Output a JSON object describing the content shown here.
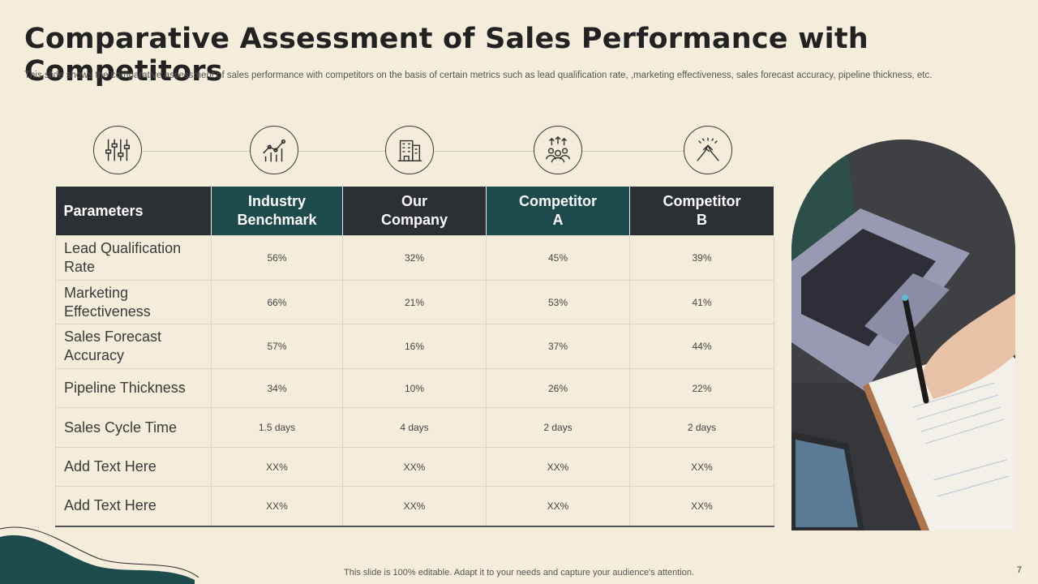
{
  "slide": {
    "title": "Comparative Assessment of Sales Performance with Competitors",
    "subtitle": "This slide shows the comparative assessment of sales performance with competitors on the basis of certain metrics such as lead qualification rate, ,marketing effectiveness, sales forecast accuracy, pipeline thickness, etc.",
    "footer": "This slide is 100% editable. Adapt it to your needs and capture your audience's attention.",
    "page_number": "7"
  },
  "icons": [
    "sliders-icon",
    "growth-chart-icon",
    "building-icon",
    "team-growth-icon",
    "handshake-icon"
  ],
  "table": {
    "header": {
      "parameters": "Parameters",
      "industry": [
        "Industry",
        "Benchmark"
      ],
      "our": [
        "Our",
        "Company"
      ],
      "comp_a": [
        "Competitor",
        "A"
      ],
      "comp_b": [
        "Competitor",
        "B"
      ]
    },
    "rows": [
      {
        "param": [
          "Lead Qualification",
          "Rate"
        ],
        "industry": "56%",
        "our": "32%",
        "comp_a": "45%",
        "comp_b": "39%"
      },
      {
        "param": [
          "Marketing",
          "Effectiveness"
        ],
        "industry": "66%",
        "our": "21%",
        "comp_a": "53%",
        "comp_b": "41%"
      },
      {
        "param": [
          "Sales Forecast",
          "Accuracy"
        ],
        "industry": "57%",
        "our": "16%",
        "comp_a": "37%",
        "comp_b": "44%"
      },
      {
        "param": [
          "Pipeline Thickness"
        ],
        "industry": "34%",
        "our": "10%",
        "comp_a": "26%",
        "comp_b": "22%"
      },
      {
        "param": [
          "Sales Cycle Time"
        ],
        "industry": "1.5 days",
        "our": "4 days",
        "comp_a": "2 days",
        "comp_b": "2 days"
      },
      {
        "param": [
          "Add Text Here"
        ],
        "industry": "XX%",
        "our": "XX%",
        "comp_a": "XX%",
        "comp_b": "XX%"
      },
      {
        "param": [
          "Add Text Here"
        ],
        "industry": "XX%",
        "our": "XX%",
        "comp_a": "XX%",
        "comp_b": "XX%"
      }
    ]
  },
  "colors": {
    "background": "#f5eddb",
    "header_dark": "#2c2f33",
    "header_teal": "#1d4a4a"
  }
}
